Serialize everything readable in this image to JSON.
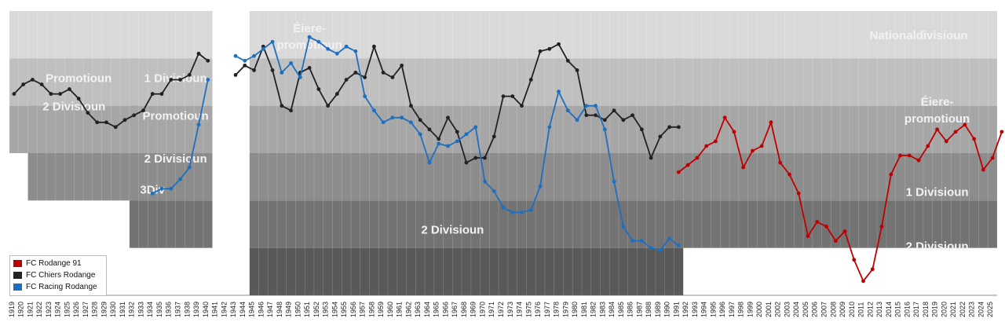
{
  "chart_data": {
    "type": "line",
    "title": "",
    "xlabel": "",
    "ylabel": "",
    "x_range": [
      1919,
      2025
    ],
    "tier_range": [
      1,
      6
    ],
    "tiers_inverted": true,
    "x_ticks": [
      1919,
      1920,
      1921,
      1922,
      1923,
      1924,
      1925,
      1926,
      1927,
      1928,
      1929,
      1930,
      1931,
      1932,
      1933,
      1934,
      1935,
      1936,
      1937,
      1938,
      1939,
      1940,
      1941,
      1942,
      1943,
      1944,
      1945,
      1946,
      1947,
      1948,
      1949,
      1950,
      1951,
      1952,
      1953,
      1954,
      1955,
      1956,
      1957,
      1958,
      1959,
      1960,
      1961,
      1962,
      1963,
      1964,
      1965,
      1966,
      1967,
      1968,
      1969,
      1970,
      1971,
      1972,
      1973,
      1974,
      1975,
      1976,
      1977,
      1978,
      1979,
      1980,
      1981,
      1982,
      1983,
      1984,
      1985,
      1986,
      1987,
      1988,
      1989,
      1990,
      1991,
      1992,
      1993,
      1994,
      1995,
      1996,
      1997,
      1998,
      1999,
      2000,
      2001,
      2002,
      2003,
      2004,
      2005,
      2006,
      2007,
      2008,
      2009,
      2010,
      2011,
      2012,
      2013,
      2014,
      2015,
      2016,
      2017,
      2018,
      2019,
      2020,
      2021,
      2022,
      2023,
      2024,
      2025
    ],
    "gap_years": [
      1941,
      1942,
      1944
    ],
    "annotations": [
      {
        "text": "Éiere-",
        "year": 1951,
        "tier": 1.35
      },
      {
        "text": "promotioun",
        "year": 1951,
        "tier": 1.7
      },
      {
        "text": "Nationaldivisioun",
        "year": 2017,
        "tier": 1.5
      },
      {
        "text": "Promotioun",
        "year": 1926,
        "tier": 2.4
      },
      {
        "text": "1 Divisioun",
        "year": 1936.5,
        "tier": 2.4
      },
      {
        "text": "2 Divisioun",
        "year": 1925.5,
        "tier": 3.0
      },
      {
        "text": "Promotioun",
        "year": 1936.5,
        "tier": 3.2
      },
      {
        "text": "Éiere-",
        "year": 2019,
        "tier": 2.9
      },
      {
        "text": "promotioun",
        "year": 2019,
        "tier": 3.25
      },
      {
        "text": "2 Divisioun",
        "year": 1936.5,
        "tier": 4.1
      },
      {
        "text": "3Div",
        "year": 1934,
        "tier": 4.75
      },
      {
        "text": "2 Divisioun",
        "year": 1966.5,
        "tier": 5.6
      },
      {
        "text": "1 Divisioun",
        "year": 2019,
        "tier": 4.8
      },
      {
        "text": "2 Divisioun",
        "year": 2019,
        "tier": 5.95
      }
    ],
    "tier_steps": {
      "fills": [
        "#d9d9d9",
        "#bfbfbf",
        "#a6a6a6",
        "#8c8c8c",
        "#737373",
        "#595959"
      ],
      "tier_counts": [
        {
          "from": 1919,
          "to": 1921,
          "tiers": 3
        },
        {
          "from": 1921,
          "to": 1932,
          "tiers": 4
        },
        {
          "from": 1932,
          "to": 1940,
          "tiers": 5
        },
        {
          "from": 1945,
          "to": 1991,
          "tiers": 6
        },
        {
          "from": 1991,
          "to": 2025,
          "tiers": 5
        }
      ]
    },
    "series": [
      {
        "name": "FC Rodange 91",
        "color": "#c00000",
        "points": [
          [
            1991,
            4.15
          ],
          [
            1992,
            4.0
          ],
          [
            1993,
            3.85
          ],
          [
            1994,
            3.6
          ],
          [
            1995,
            3.5
          ],
          [
            1996,
            3.0
          ],
          [
            1997,
            3.3
          ],
          [
            1998,
            4.05
          ],
          [
            1999,
            3.7
          ],
          [
            2000,
            3.6
          ],
          [
            2001,
            3.1
          ],
          [
            2002,
            3.95
          ],
          [
            2003,
            4.2
          ],
          [
            2004,
            4.6
          ],
          [
            2005,
            5.5
          ],
          [
            2006,
            5.2
          ],
          [
            2007,
            5.3
          ],
          [
            2008,
            5.6
          ],
          [
            2009,
            5.4
          ],
          [
            2010,
            6.0
          ],
          [
            2011,
            6.45
          ],
          [
            2012,
            6.2
          ],
          [
            2013,
            5.3
          ],
          [
            2014,
            4.2
          ],
          [
            2015,
            3.8
          ],
          [
            2016,
            3.8
          ],
          [
            2017,
            3.9
          ],
          [
            2018,
            3.6
          ],
          [
            2019,
            3.25
          ],
          [
            2020,
            3.5
          ],
          [
            2021,
            3.3
          ],
          [
            2022,
            3.15
          ],
          [
            2023,
            3.45
          ],
          [
            2024,
            4.1
          ],
          [
            2025,
            3.85
          ],
          [
            2026,
            3.3
          ]
        ]
      },
      {
        "name": "FC Chiers Rodange",
        "color": "#222222",
        "points": [
          [
            1919,
            2.5
          ],
          [
            1920,
            2.3
          ],
          [
            1921,
            2.2
          ],
          [
            1922,
            2.3
          ],
          [
            1923,
            2.5
          ],
          [
            1924,
            2.5
          ],
          [
            1925,
            2.4
          ],
          [
            1926,
            2.6
          ],
          [
            1927,
            2.9
          ],
          [
            1928,
            3.1
          ],
          [
            1929,
            3.1
          ],
          [
            1930,
            3.2
          ],
          [
            1931,
            3.05
          ],
          [
            1932,
            2.95
          ],
          [
            1933,
            2.85
          ],
          [
            1934,
            2.5
          ],
          [
            1935,
            2.5
          ],
          [
            1936,
            2.2
          ],
          [
            1937,
            2.2
          ],
          [
            1938,
            2.1
          ],
          [
            1939,
            1.65
          ],
          [
            1940,
            1.8
          ],
          [
            1943,
            2.1
          ],
          [
            1944,
            1.9
          ],
          [
            1945,
            2.0
          ],
          [
            1946,
            1.5
          ],
          [
            1947,
            2.0
          ],
          [
            1948,
            2.75
          ],
          [
            1949,
            2.85
          ],
          [
            1950,
            2.05
          ],
          [
            1951,
            1.95
          ],
          [
            1952,
            2.4
          ],
          [
            1953,
            2.75
          ],
          [
            1954,
            2.5
          ],
          [
            1955,
            2.2
          ],
          [
            1956,
            2.05
          ],
          [
            1957,
            2.15
          ],
          [
            1958,
            1.5
          ],
          [
            1959,
            2.05
          ],
          [
            1960,
            2.15
          ],
          [
            1961,
            1.9
          ],
          [
            1962,
            2.75
          ],
          [
            1963,
            3.05
          ],
          [
            1964,
            3.25
          ],
          [
            1965,
            3.45
          ],
          [
            1966,
            3.0
          ],
          [
            1967,
            3.3
          ],
          [
            1968,
            3.95
          ],
          [
            1969,
            3.85
          ],
          [
            1970,
            3.85
          ],
          [
            1971,
            3.4
          ],
          [
            1972,
            2.55
          ],
          [
            1973,
            2.55
          ],
          [
            1974,
            2.75
          ],
          [
            1975,
            2.2
          ],
          [
            1976,
            1.6
          ],
          [
            1977,
            1.55
          ],
          [
            1978,
            1.45
          ],
          [
            1979,
            1.8
          ],
          [
            1980,
            2.0
          ],
          [
            1981,
            2.95
          ],
          [
            1982,
            2.95
          ],
          [
            1983,
            3.05
          ],
          [
            1984,
            2.85
          ],
          [
            1985,
            3.05
          ],
          [
            1986,
            2.95
          ],
          [
            1987,
            3.25
          ],
          [
            1988,
            3.85
          ],
          [
            1989,
            3.4
          ],
          [
            1990,
            3.2
          ],
          [
            1991,
            3.2
          ]
        ]
      },
      {
        "name": "FC Racing Rodange",
        "color": "#1f6fc0",
        "points": [
          [
            1934,
            4.6
          ],
          [
            1935,
            4.5
          ],
          [
            1936,
            4.5
          ],
          [
            1937,
            4.3
          ],
          [
            1938,
            4.05
          ],
          [
            1939,
            3.15
          ],
          [
            1940,
            2.2
          ],
          [
            1943,
            1.7
          ],
          [
            1944,
            1.8
          ],
          [
            1945,
            1.7
          ],
          [
            1946,
            1.55
          ],
          [
            1947,
            1.4
          ],
          [
            1948,
            2.05
          ],
          [
            1949,
            1.85
          ],
          [
            1950,
            2.15
          ],
          [
            1951,
            1.3
          ],
          [
            1952,
            1.4
          ],
          [
            1953,
            1.55
          ],
          [
            1954,
            1.65
          ],
          [
            1955,
            1.5
          ],
          [
            1956,
            1.6
          ],
          [
            1957,
            2.55
          ],
          [
            1958,
            2.85
          ],
          [
            1959,
            3.1
          ],
          [
            1960,
            3.0
          ],
          [
            1961,
            3.0
          ],
          [
            1962,
            3.1
          ],
          [
            1963,
            3.35
          ],
          [
            1964,
            3.95
          ],
          [
            1965,
            3.55
          ],
          [
            1966,
            3.6
          ],
          [
            1967,
            3.5
          ],
          [
            1968,
            3.35
          ],
          [
            1969,
            3.2
          ],
          [
            1970,
            4.35
          ],
          [
            1971,
            4.55
          ],
          [
            1972,
            4.9
          ],
          [
            1973,
            5.0
          ],
          [
            1974,
            5.0
          ],
          [
            1975,
            4.95
          ],
          [
            1976,
            4.45
          ],
          [
            1977,
            3.2
          ],
          [
            1978,
            2.45
          ],
          [
            1979,
            2.85
          ],
          [
            1980,
            3.05
          ],
          [
            1981,
            2.75
          ],
          [
            1982,
            2.75
          ],
          [
            1983,
            3.25
          ],
          [
            1984,
            4.35
          ],
          [
            1985,
            5.3
          ],
          [
            1986,
            5.6
          ],
          [
            1987,
            5.6
          ],
          [
            1988,
            5.75
          ],
          [
            1989,
            5.8
          ],
          [
            1990,
            5.55
          ],
          [
            1991,
            5.7
          ]
        ]
      }
    ],
    "legend": {
      "position": "bottom-left",
      "entries": [
        "FC Rodange 91",
        "FC Chiers Rodange",
        "FC Racing Rodange"
      ]
    }
  }
}
